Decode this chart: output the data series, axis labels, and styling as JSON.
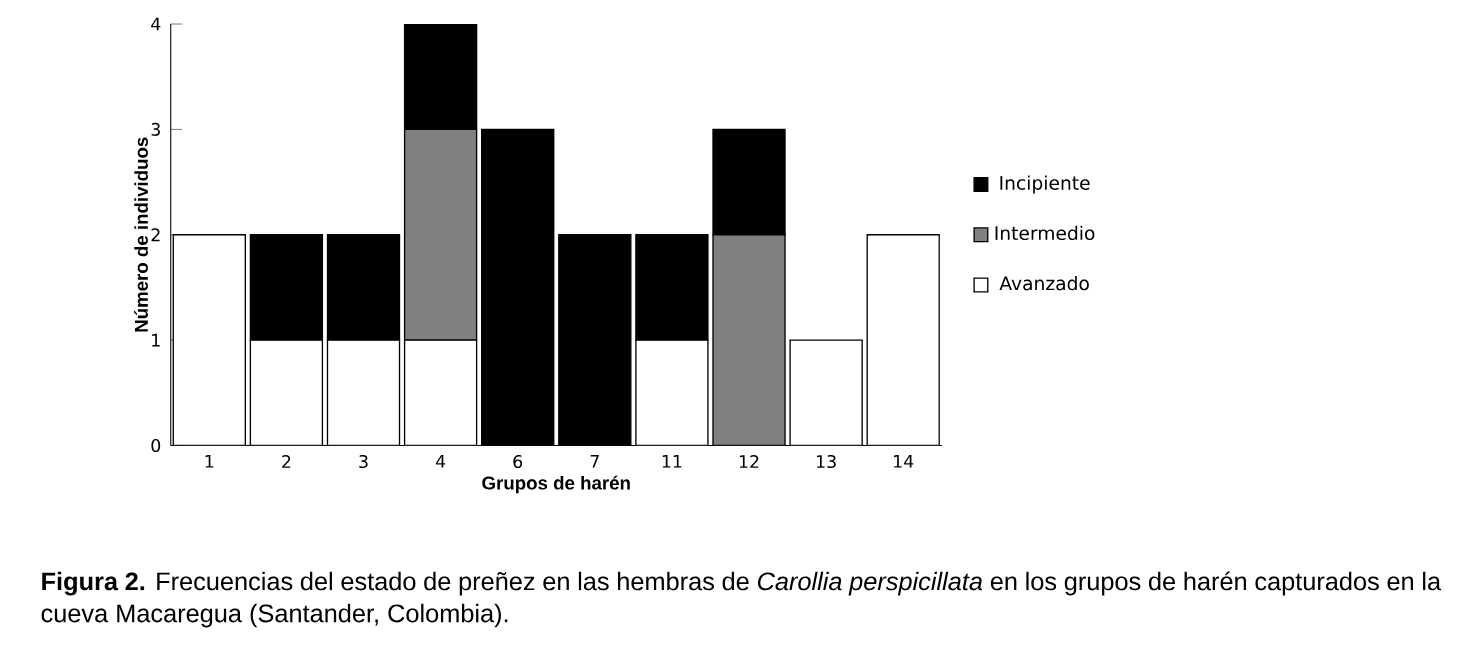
{
  "chart_data": {
    "type": "bar",
    "stacked": true,
    "xlabel": "Grupos de harén",
    "ylabel": "Número de individuos",
    "categories": [
      "1",
      "2",
      "3",
      "4",
      "6",
      "7",
      "11",
      "12",
      "13",
      "14"
    ],
    "series": [
      {
        "name": "Avanzado",
        "color": "#ffffff",
        "values": [
          2,
          1,
          1,
          1,
          0,
          0,
          1,
          0,
          1,
          2
        ]
      },
      {
        "name": "Intermedio",
        "color": "#808080",
        "values": [
          0,
          0,
          0,
          2,
          0,
          0,
          0,
          2,
          0,
          0
        ]
      },
      {
        "name": "Incipiente",
        "color": "#000000",
        "values": [
          0,
          1,
          1,
          1,
          3,
          2,
          1,
          1,
          0,
          0
        ]
      }
    ],
    "ylim": [
      0,
      4
    ],
    "yticks": [
      0,
      1,
      2,
      3,
      4
    ],
    "legend": "right",
    "grid": false,
    "annotations": [
      "**Figura 2.** Frecuencias del estado de preñez en las hembras de *Carollia perspicillata* en los grupos de harén capturados en la cueva Macaregua (Santander, Colombia)."
    ]
  }
}
